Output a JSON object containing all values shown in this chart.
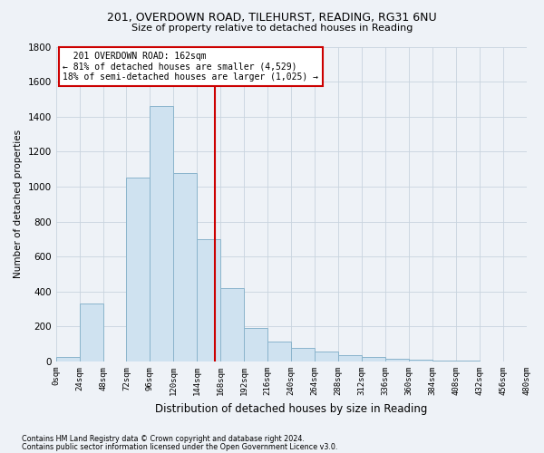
{
  "title1": "201, OVERDOWN ROAD, TILEHURST, READING, RG31 6NU",
  "title2": "Size of property relative to detached houses in Reading",
  "xlabel": "Distribution of detached houses by size in Reading",
  "ylabel": "Number of detached properties",
  "footer1": "Contains HM Land Registry data © Crown copyright and database right 2024.",
  "footer2": "Contains public sector information licensed under the Open Government Licence v3.0.",
  "annotation_line1": "201 OVERDOWN ROAD: 162sqm",
  "annotation_line2": "← 81% of detached houses are smaller (4,529)",
  "annotation_line3": "18% of semi-detached houses are larger (1,025) →",
  "property_size": 162,
  "bin_edges": [
    0,
    24,
    48,
    72,
    96,
    120,
    144,
    168,
    192,
    216,
    240,
    264,
    288,
    312,
    336,
    360,
    384,
    408,
    432,
    456,
    480
  ],
  "bar_heights": [
    25,
    330,
    0,
    1050,
    1460,
    1080,
    700,
    420,
    190,
    115,
    80,
    55,
    35,
    25,
    15,
    10,
    5,
    3,
    2,
    1
  ],
  "bar_color": "#cfe2f0",
  "bar_edge_color": "#8ab4cc",
  "vline_color": "#cc0000",
  "grid_color": "#c8d4de",
  "background_color": "#eef2f7",
  "plot_bg_color": "#eef2f7",
  "annotation_box_color": "#ffffff",
  "annotation_box_edge": "#cc0000",
  "ylim": [
    0,
    1800
  ],
  "yticks": [
    0,
    200,
    400,
    600,
    800,
    1000,
    1200,
    1400,
    1600,
    1800
  ]
}
